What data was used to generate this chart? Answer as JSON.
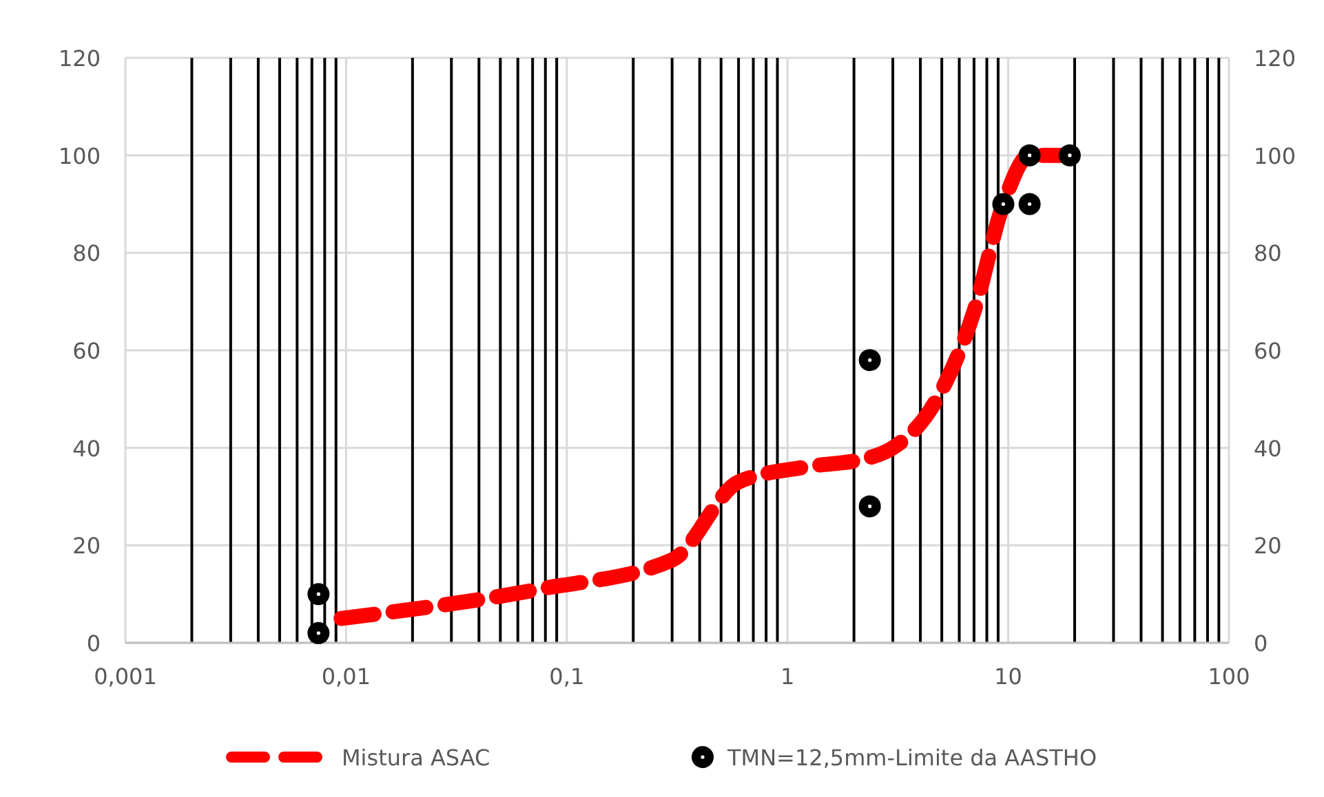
{
  "chart_data": {
    "type": "line",
    "log": "x",
    "grid": true,
    "legend": "bottom",
    "xlim": [
      0.001,
      100
    ],
    "ylim": [
      0,
      120
    ],
    "xticks": [
      {
        "value": 0.001,
        "label": "0,001"
      },
      {
        "value": 0.002,
        "label": null
      },
      {
        "value": 0.003,
        "label": null
      },
      {
        "value": 0.004,
        "label": null
      },
      {
        "value": 0.005,
        "label": null
      },
      {
        "value": 0.006,
        "label": null
      },
      {
        "value": 0.007,
        "label": null
      },
      {
        "value": 0.008,
        "label": null
      },
      {
        "value": 0.009,
        "label": null
      },
      {
        "value": 0.01,
        "label": "0,01"
      },
      {
        "value": 0.02,
        "label": null
      },
      {
        "value": 0.03,
        "label": null
      },
      {
        "value": 0.04,
        "label": null
      },
      {
        "value": 0.05,
        "label": null
      },
      {
        "value": 0.06,
        "label": null
      },
      {
        "value": 0.07,
        "label": null
      },
      {
        "value": 0.08,
        "label": null
      },
      {
        "value": 0.09,
        "label": null
      },
      {
        "value": 0.1,
        "label": "0,1"
      },
      {
        "value": 0.2,
        "label": null
      },
      {
        "value": 0.3,
        "label": null
      },
      {
        "value": 0.4,
        "label": null
      },
      {
        "value": 0.5,
        "label": null
      },
      {
        "value": 0.6,
        "label": null
      },
      {
        "value": 0.7,
        "label": null
      },
      {
        "value": 0.8,
        "label": null
      },
      {
        "value": 0.9,
        "label": null
      },
      1,
      {
        "value": 2,
        "label": null
      },
      {
        "value": 3,
        "label": null
      },
      {
        "value": 4,
        "label": null
      },
      {
        "value": 5,
        "label": null
      },
      {
        "value": 6,
        "label": null
      },
      {
        "value": 7,
        "label": null
      },
      {
        "value": 8,
        "label": null
      },
      {
        "value": 9,
        "label": null
      },
      10,
      {
        "value": 20,
        "label": null
      },
      {
        "value": 30,
        "label": null
      },
      {
        "value": 40,
        "label": null
      },
      {
        "value": 50,
        "label": null
      },
      {
        "value": 60,
        "label": null
      },
      {
        "value": 70,
        "label": null
      },
      {
        "value": 80,
        "label": null
      },
      {
        "value": 90,
        "label": null
      },
      100
    ],
    "yticks": [
      0,
      20,
      40,
      60,
      80,
      100,
      120
    ],
    "y2lim": [
      0,
      120
    ],
    "y2ticks": [
      0,
      20,
      40,
      60,
      80,
      100,
      120
    ],
    "series": [
      {
        "name": "Mistura ASAC",
        "color": "#ff0000",
        "line_style": "dashed",
        "marker": "none",
        "x": [
          0.0095,
          0.075,
          0.3,
          0.6,
          1.18,
          2.36,
          3.0,
          4.75,
          7,
          9.5,
          12.5,
          19
        ],
        "values": [
          5,
          11,
          17,
          33,
          36,
          38,
          40,
          50,
          68,
          90,
          100,
          100
        ]
      },
      {
        "name": "TMN=12,5mm-Limite da AASTHO",
        "type": "scatter",
        "color": "#000000",
        "marker": "circle",
        "x": [
          0.0075,
          0.0075,
          2.36,
          2.36,
          9.5,
          12.5,
          12.5,
          19
        ],
        "values": [
          10,
          2,
          58,
          28,
          90,
          90,
          100,
          100
        ]
      }
    ]
  }
}
